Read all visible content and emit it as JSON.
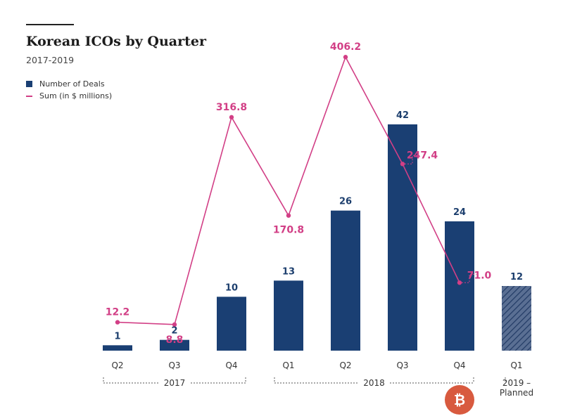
{
  "header": {
    "title": "Korean ICOs by Quarter",
    "subtitle": "2017-2019"
  },
  "legend": {
    "bars": "Number of Deals",
    "line": "Sum (in $ millions)"
  },
  "colors": {
    "bar": "#1a3f73",
    "line": "#d23f86",
    "planned_hatch": "#1a3f73"
  },
  "chart_data": {
    "type": "bar",
    "title": "Korean ICOs by Quarter",
    "subtitle": "2017-2019",
    "categories": [
      "Q2",
      "Q3",
      "Q4",
      "Q1",
      "Q2",
      "Q3",
      "Q4",
      "Q1"
    ],
    "groups": [
      {
        "label": "2017",
        "from": 0,
        "to": 2
      },
      {
        "label": "2018",
        "from": 3,
        "to": 6
      },
      {
        "label": "2019 – Planned",
        "from": 7,
        "to": 7
      }
    ],
    "series": [
      {
        "name": "Number of Deals",
        "kind": "bar",
        "values": [
          1,
          2,
          10,
          13,
          26,
          42,
          24,
          12
        ],
        "labels": [
          "1",
          "2",
          "10",
          "13",
          "26",
          "42",
          "24",
          "12"
        ],
        "planned": [
          false,
          false,
          false,
          false,
          false,
          false,
          false,
          true
        ]
      },
      {
        "name": "Sum (in $ millions)",
        "kind": "line",
        "values": [
          12.2,
          8.8,
          316.8,
          170.8,
          406.2,
          247.4,
          71.0,
          null
        ],
        "labels": [
          "12.2",
          "8.8",
          "316.8",
          "170.8",
          "406.2",
          "247.4",
          "71.0",
          null
        ]
      }
    ],
    "bar_ylim": [
      0,
      48
    ],
    "line_ylim": [
      -30,
      420
    ],
    "grid": false,
    "legend_position": "top-left"
  },
  "watermark": {
    "logo_glyph": "₿"
  }
}
